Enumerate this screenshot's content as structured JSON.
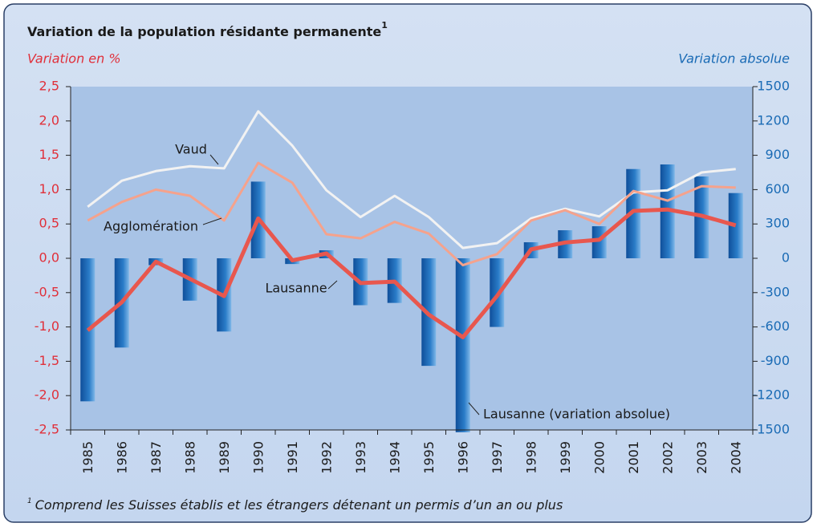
{
  "chart_data": {
    "type": "bar_line",
    "title": "Variation de la population résidante permanente",
    "title_marker": "1",
    "y_label": "Variation en  %",
    "y2_label": "Variation absolue",
    "footnote": {
      "marker": "1",
      "text": "Comprend les Suisses établis et les étrangers détenant un permis d’un an ou plus"
    },
    "categories": [
      "1985",
      "1986",
      "1987",
      "1988",
      "1989",
      "1990",
      "1991",
      "1992",
      "1993",
      "1994",
      "1995",
      "1996",
      "1997",
      "1998",
      "1999",
      "2000",
      "2001",
      "2002",
      "2003",
      "2004"
    ],
    "ylim": [
      -2.5,
      2.5
    ],
    "yticks": [
      {
        "value": -2.5,
        "label": "-2,5"
      },
      {
        "value": -2,
        "label": "-2,0"
      },
      {
        "value": -1.5,
        "label": "-1,5"
      },
      {
        "value": -1,
        "label": "-1,0"
      },
      {
        "value": -0.5,
        "label": "-0,5"
      },
      {
        "value": 0,
        "label": "0,0"
      },
      {
        "value": 0.5,
        "label": "0,5"
      },
      {
        "value": 1,
        "label": "1,0"
      },
      {
        "value": 1.5,
        "label": "1,5"
      },
      {
        "value": 2,
        "label": "2,0"
      },
      {
        "value": 2.5,
        "label": "2,5"
      }
    ],
    "y2lim": [
      -1500,
      1500
    ],
    "y2ticks": [
      -1500,
      -1200,
      -900,
      -600,
      -300,
      0,
      300,
      600,
      900,
      1200,
      1500
    ],
    "grid": false,
    "series": [
      {
        "name": "Lausanne (variation absolue)",
        "type": "bar",
        "axis": "y2",
        "color": "#1f68b4",
        "values": [
          -1250,
          -780,
          -60,
          -370,
          -640,
          670,
          -50,
          70,
          -410,
          -390,
          -940,
          -1520,
          -600,
          140,
          245,
          280,
          780,
          820,
          715,
          570
        ]
      },
      {
        "name": "Vaud",
        "type": "line",
        "color": "#f2f2f2",
        "values": [
          0.75,
          1.13,
          1.27,
          1.34,
          1.31,
          2.14,
          1.64,
          0.99,
          0.6,
          0.91,
          0.6,
          0.15,
          0.22,
          0.58,
          0.72,
          0.61,
          0.96,
          0.99,
          1.25,
          1.3
        ]
      },
      {
        "name": "Agglomération",
        "type": "line",
        "color": "#f5a28c",
        "values": [
          0.55,
          0.82,
          1.0,
          0.91,
          0.55,
          1.39,
          1.1,
          0.35,
          0.29,
          0.53,
          0.36,
          -0.1,
          0.06,
          0.55,
          0.7,
          0.5,
          0.98,
          0.84,
          1.05,
          1.03
        ]
      },
      {
        "name": "Lausanne",
        "type": "line",
        "color": "#e8574e",
        "values": [
          -1.05,
          -0.64,
          -0.05,
          -0.3,
          -0.55,
          0.58,
          -0.03,
          0.07,
          -0.36,
          -0.34,
          -0.82,
          -1.15,
          -0.55,
          0.13,
          0.23,
          0.27,
          0.69,
          0.71,
          0.62,
          0.48
        ]
      }
    ]
  }
}
